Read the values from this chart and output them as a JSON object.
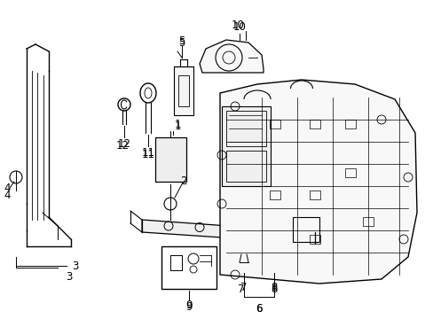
{
  "bg_color": "#ffffff",
  "line_color": "#000000",
  "label_fontsize": 8.5,
  "figsize": [
    4.89,
    3.6
  ],
  "dpi": 100,
  "xlim": [
    0,
    489
  ],
  "ylim": [
    0,
    360
  ]
}
